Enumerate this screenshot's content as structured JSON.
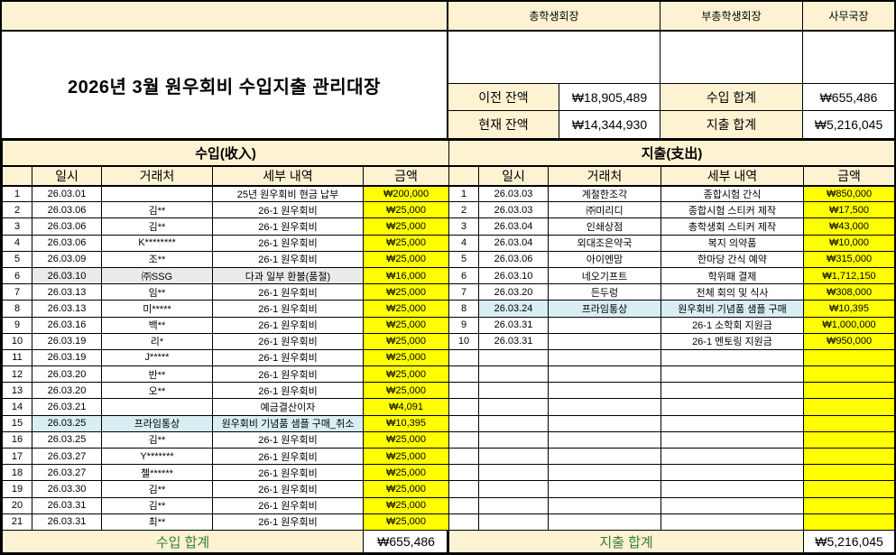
{
  "title": "2026년 3월 원우회비 수입지출 관리대장",
  "signatories": [
    "총학생회장",
    "부총학생회장",
    "사무국장"
  ],
  "summary": {
    "prev_balance_label": "이전 잔액",
    "prev_balance": "₩18,905,489",
    "income_total_label": "수입 합계",
    "income_total": "₩655,486",
    "current_balance_label": "현재 잔액",
    "current_balance": "₩14,344,930",
    "expense_total_label": "지출 합계",
    "expense_total": "₩5,216,045"
  },
  "income_table": {
    "section_title": "수입(收入)",
    "columns": [
      "일시",
      "거래처",
      "세부 내역",
      "금액"
    ],
    "rows": [
      {
        "no": "1",
        "date": "26.03.01",
        "vendor": "",
        "detail": "25년 원우회비 현금 납부",
        "amount": "₩200,000",
        "highlight": ""
      },
      {
        "no": "2",
        "date": "26.03.06",
        "vendor": "김**",
        "detail": "26-1 원우회비",
        "amount": "₩25,000",
        "highlight": ""
      },
      {
        "no": "3",
        "date": "26.03.06",
        "vendor": "김**",
        "detail": "26-1 원우회비",
        "amount": "₩25,000",
        "highlight": ""
      },
      {
        "no": "4",
        "date": "26.03.06",
        "vendor": "K********",
        "detail": "26-1 원우회비",
        "amount": "₩25,000",
        "highlight": ""
      },
      {
        "no": "5",
        "date": "26.03.09",
        "vendor": "조**",
        "detail": "26-1 원우회비",
        "amount": "₩25,000",
        "highlight": ""
      },
      {
        "no": "6",
        "date": "26.03.10",
        "vendor": "㈜SSG",
        "detail": "다과 일부 환불(품절)",
        "amount": "₩16,000",
        "highlight": "gray"
      },
      {
        "no": "7",
        "date": "26.03.13",
        "vendor": "임**",
        "detail": "26-1 원우회비",
        "amount": "₩25,000",
        "highlight": ""
      },
      {
        "no": "8",
        "date": "26.03.13",
        "vendor": "미*****",
        "detail": "26-1 원우회비",
        "amount": "₩25,000",
        "highlight": ""
      },
      {
        "no": "9",
        "date": "26.03.16",
        "vendor": "백**",
        "detail": "26-1 원우회비",
        "amount": "₩25,000",
        "highlight": ""
      },
      {
        "no": "10",
        "date": "26.03.19",
        "vendor": "리*",
        "detail": "26-1 원우회비",
        "amount": "₩25,000",
        "highlight": ""
      },
      {
        "no": "11",
        "date": "26.03.19",
        "vendor": "J*****",
        "detail": "26-1 원우회비",
        "amount": "₩25,000",
        "highlight": ""
      },
      {
        "no": "12",
        "date": "26.03.20",
        "vendor": "반**",
        "detail": "26-1 원우회비",
        "amount": "₩25,000",
        "highlight": ""
      },
      {
        "no": "13",
        "date": "26.03.20",
        "vendor": "오**",
        "detail": "26-1 원우회비",
        "amount": "₩25,000",
        "highlight": ""
      },
      {
        "no": "14",
        "date": "26.03.21",
        "vendor": "",
        "detail": "예금결산이자",
        "amount": "₩4,091",
        "highlight": ""
      },
      {
        "no": "15",
        "date": "26.03.25",
        "vendor": "프라임통상",
        "detail": "원우회비 기념품 샘플 구매_취소",
        "amount": "₩10,395",
        "highlight": "blue"
      },
      {
        "no": "16",
        "date": "26.03.25",
        "vendor": "김**",
        "detail": "26-1 원우회비",
        "amount": "₩25,000",
        "highlight": ""
      },
      {
        "no": "17",
        "date": "26.03.27",
        "vendor": "Y*******",
        "detail": "26-1 원우회비",
        "amount": "₩25,000",
        "highlight": ""
      },
      {
        "no": "18",
        "date": "26.03.27",
        "vendor": "첼******",
        "detail": "26-1 원우회비",
        "amount": "₩25,000",
        "highlight": ""
      },
      {
        "no": "19",
        "date": "26.03.30",
        "vendor": "김**",
        "detail": "26-1 원우회비",
        "amount": "₩25,000",
        "highlight": ""
      },
      {
        "no": "20",
        "date": "26.03.31",
        "vendor": "김**",
        "detail": "26-1 원우회비",
        "amount": "₩25,000",
        "highlight": ""
      },
      {
        "no": "21",
        "date": "26.03.31",
        "vendor": "최**",
        "detail": "26-1 원우회비",
        "amount": "₩25,000",
        "highlight": ""
      }
    ],
    "total_label": "수입 합계",
    "total": "₩655,486"
  },
  "expense_table": {
    "section_title": "지출(支出)",
    "columns": [
      "일시",
      "거래처",
      "세부 내역",
      "금액"
    ],
    "rows": [
      {
        "no": "1",
        "date": "26.03.03",
        "vendor": "계절한조각",
        "detail": "종합시험 간식",
        "amount": "₩850,000",
        "highlight": ""
      },
      {
        "no": "2",
        "date": "26.03.03",
        "vendor": "㈜미리디",
        "detail": "종합시험 스티커 제작",
        "amount": "₩17,500",
        "highlight": ""
      },
      {
        "no": "3",
        "date": "26.03.04",
        "vendor": "인쇄상점",
        "detail": "총학생회 스티커 제작",
        "amount": "₩43,000",
        "highlight": ""
      },
      {
        "no": "4",
        "date": "26.03.04",
        "vendor": "외대조은약국",
        "detail": "복지 의약품",
        "amount": "₩10,000",
        "highlight": ""
      },
      {
        "no": "5",
        "date": "26.03.06",
        "vendor": "아이엔맘",
        "detail": "한마당 간식 예약",
        "amount": "₩315,000",
        "highlight": ""
      },
      {
        "no": "6",
        "date": "26.03.10",
        "vendor": "네오기프트",
        "detail": "학위패 결제",
        "amount": "₩1,712,150",
        "highlight": ""
      },
      {
        "no": "7",
        "date": "26.03.20",
        "vendor": "든두렁",
        "detail": "전체 회의 및 식사",
        "amount": "₩308,000",
        "highlight": ""
      },
      {
        "no": "8",
        "date": "26.03.24",
        "vendor": "프라임통상",
        "detail": "원우회비 기념품 샘플 구매",
        "amount": "₩10,395",
        "highlight": "blue"
      },
      {
        "no": "9",
        "date": "26.03.31",
        "vendor": "",
        "detail": "26-1 소학회 지원금",
        "amount": "₩1,000,000",
        "highlight": ""
      },
      {
        "no": "10",
        "date": "26.03.31",
        "vendor": "",
        "detail": "26-1 멘토링 지원금",
        "amount": "₩950,000",
        "highlight": ""
      },
      {
        "no": "",
        "date": "",
        "vendor": "",
        "detail": "",
        "amount": "",
        "highlight": ""
      },
      {
        "no": "",
        "date": "",
        "vendor": "",
        "detail": "",
        "amount": "",
        "highlight": ""
      },
      {
        "no": "",
        "date": "",
        "vendor": "",
        "detail": "",
        "amount": "",
        "highlight": ""
      },
      {
        "no": "",
        "date": "",
        "vendor": "",
        "detail": "",
        "amount": "",
        "highlight": ""
      },
      {
        "no": "",
        "date": "",
        "vendor": "",
        "detail": "",
        "amount": "",
        "highlight": ""
      },
      {
        "no": "",
        "date": "",
        "vendor": "",
        "detail": "",
        "amount": "",
        "highlight": ""
      },
      {
        "no": "",
        "date": "",
        "vendor": "",
        "detail": "",
        "amount": "",
        "highlight": ""
      },
      {
        "no": "",
        "date": "",
        "vendor": "",
        "detail": "",
        "amount": "",
        "highlight": ""
      },
      {
        "no": "",
        "date": "",
        "vendor": "",
        "detail": "",
        "amount": "",
        "highlight": ""
      },
      {
        "no": "",
        "date": "",
        "vendor": "",
        "detail": "",
        "amount": "",
        "highlight": ""
      },
      {
        "no": "",
        "date": "",
        "vendor": "",
        "detail": "",
        "amount": "",
        "highlight": ""
      }
    ],
    "total_label": "지출 합계",
    "total": "₩5,216,045"
  },
  "colors": {
    "header_fill": "#fdf2d2",
    "amount_fill": "#ffff00",
    "highlight_blue": "#d9eef3",
    "highlight_gray": "#ebebeb",
    "total_text_green": "#377d37"
  }
}
